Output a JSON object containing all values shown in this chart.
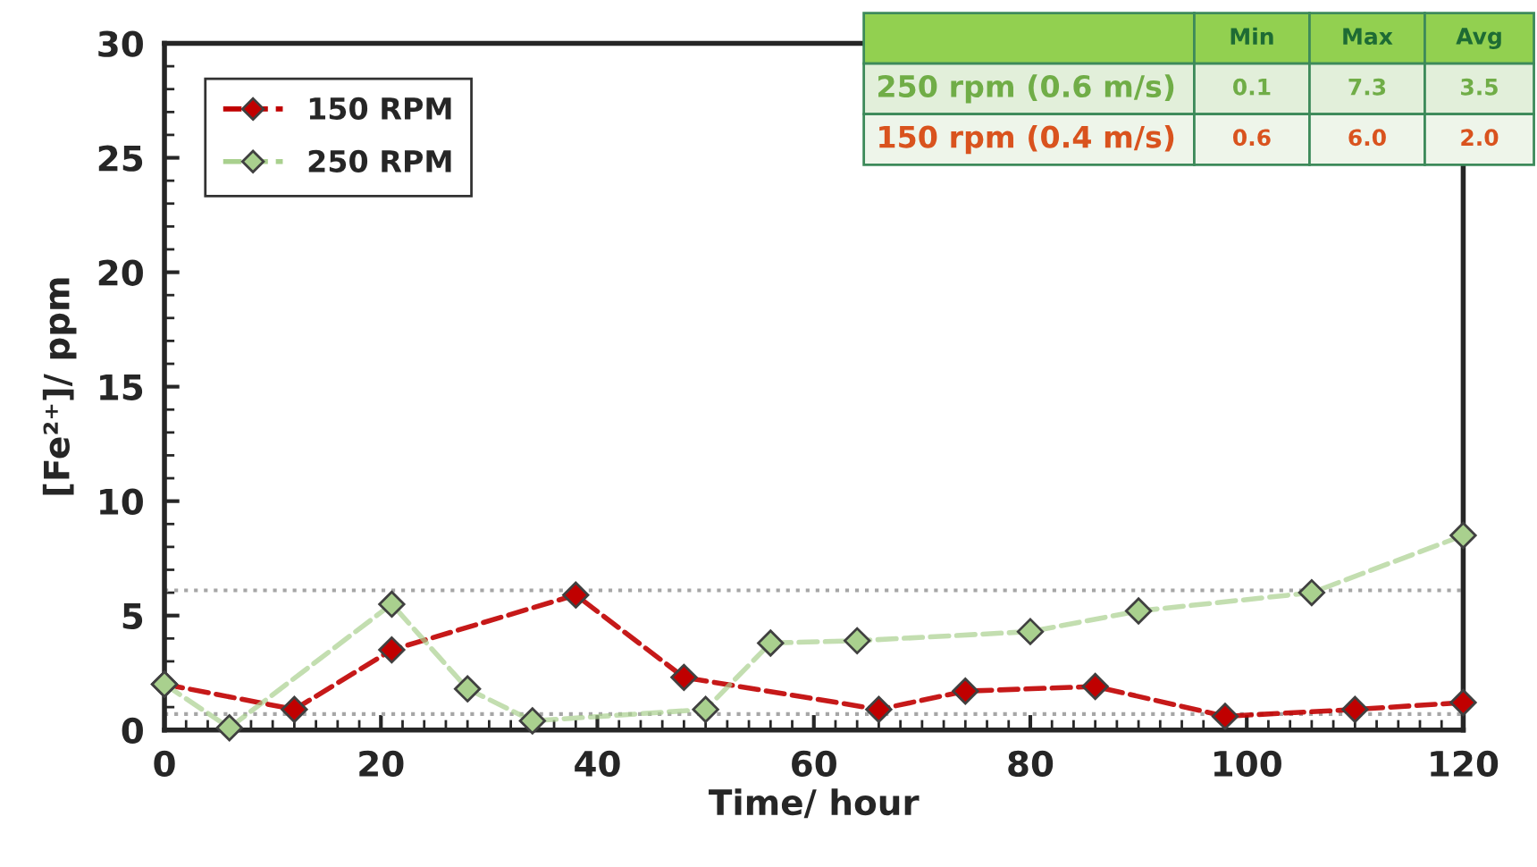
{
  "chart_data": {
    "type": "line",
    "xlabel": "Time/ hour",
    "ylabel": "[Fe²⁺]/ ppm",
    "series": [
      {
        "name": "150 RPM",
        "color": "#c00000",
        "x": [
          0,
          12,
          21,
          38,
          48,
          66,
          74,
          86,
          98,
          110,
          120
        ],
        "values": [
          2.0,
          0.9,
          3.5,
          5.9,
          2.3,
          0.9,
          1.7,
          1.9,
          0.6,
          0.9,
          1.2
        ]
      },
      {
        "name": "250 RPM",
        "color": "#a9d08e",
        "x": [
          0,
          6,
          21,
          28,
          34,
          50,
          56,
          64,
          80,
          90,
          106,
          120
        ],
        "values": [
          2.0,
          0.1,
          5.5,
          1.8,
          0.4,
          0.9,
          3.8,
          3.9,
          4.3,
          5.2,
          6.0,
          8.5
        ]
      }
    ],
    "xlim": [
      0,
      120
    ],
    "xticks": [
      0,
      20,
      40,
      60,
      80,
      100,
      120
    ],
    "ylim": [
      0,
      30
    ],
    "yticks": [
      0,
      5,
      10,
      15,
      20,
      25,
      30
    ],
    "ref_lines": [
      {
        "axis": "y",
        "value": 6.1,
        "color": "#a6a6a6",
        "line_style": "dotted"
      },
      {
        "axis": "y",
        "value": 0.7,
        "color": "#a6a6a6",
        "line_style": "dotted"
      }
    ],
    "annotations": [
      "Min",
      "Max",
      "Avg",
      "250 rpm (0.6 m/s)",
      "0.1",
      "7.3",
      "3.5",
      "150 rpm (0.4 m/s)",
      "0.6",
      "6.0",
      "2.0"
    ],
    "marker": "diamond",
    "line_style": "dashed",
    "legend": "top left",
    "grid": false
  }
}
